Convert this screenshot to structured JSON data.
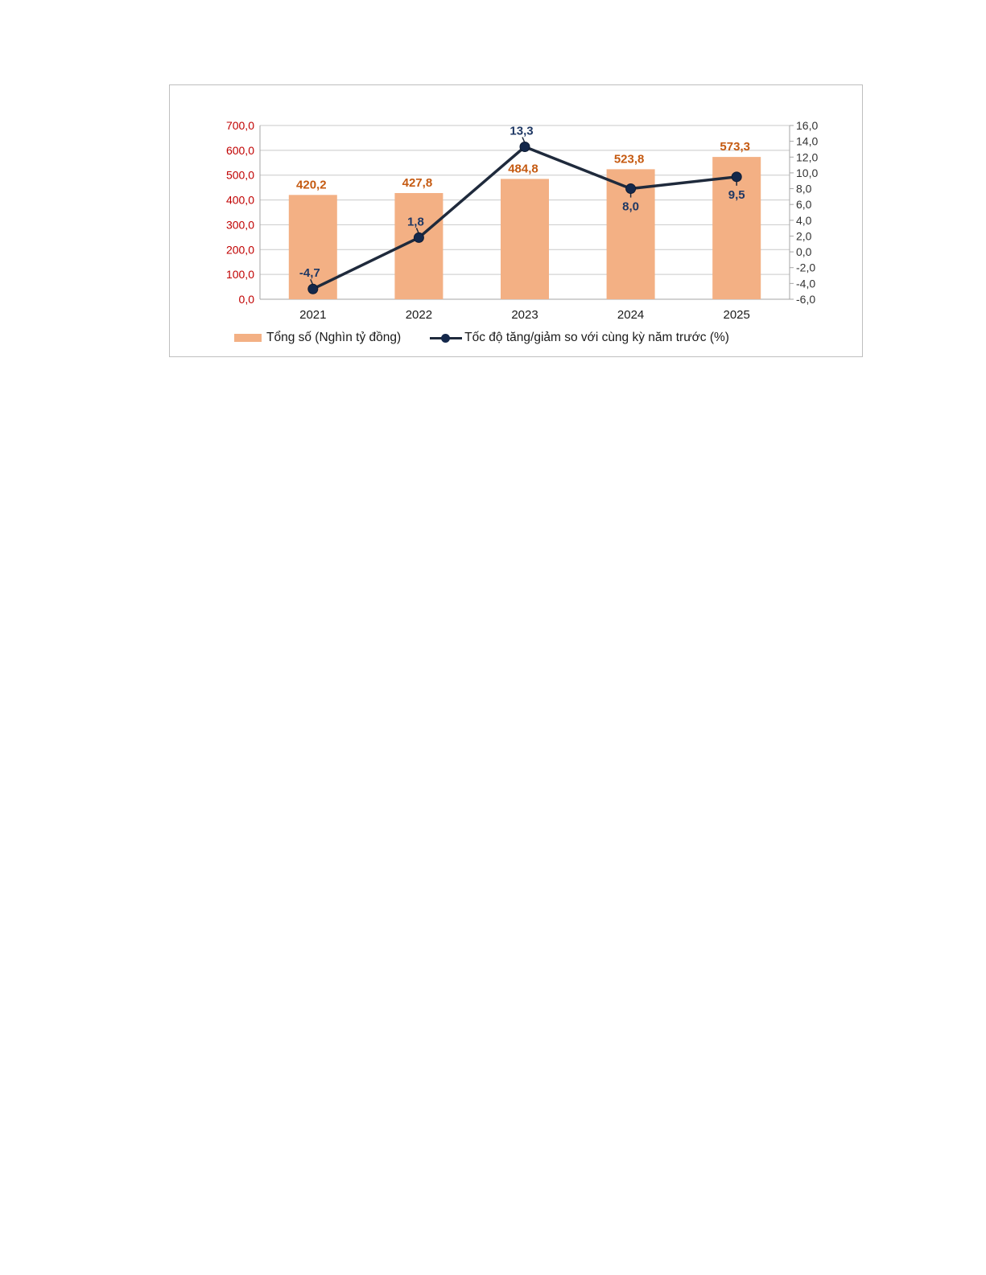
{
  "chart_data": {
    "type": "bar",
    "categories": [
      "2021",
      "2022",
      "2023",
      "2024",
      "2025"
    ],
    "series": [
      {
        "name": "Tổng số (Nghìn tỷ đồng)",
        "type": "bar",
        "axis": "left",
        "values": [
          420.2,
          427.8,
          484.8,
          523.8,
          573.3
        ],
        "labels": [
          "420,2",
          "427,8",
          "484,8",
          "523,8",
          "573,3"
        ],
        "color": "#f3b084",
        "label_color": "#c55a11"
      },
      {
        "name": "Tốc độ tăng/giảm so với cùng kỳ năm trước (%)",
        "type": "line",
        "axis": "right",
        "values": [
          -4.7,
          1.8,
          13.3,
          8.0,
          9.5
        ],
        "labels": [
          "-4,7",
          "1,8",
          "13,3",
          "8,0",
          "9,5"
        ],
        "color": "#1f2a3c",
        "marker_color": "#14284b",
        "label_color": "#1f3864"
      }
    ],
    "y_left": {
      "lim": [
        0,
        700
      ],
      "ticks": [
        "0,0",
        "100,0",
        "200,0",
        "300,0",
        "400,0",
        "500,0",
        "600,0",
        "700,0"
      ],
      "tick_color": "#c00000"
    },
    "y_right": {
      "lim": [
        -6,
        16
      ],
      "ticks": [
        "-6,0",
        "-4,0",
        "-2,0",
        "0,0",
        "2,0",
        "4,0",
        "6,0",
        "8,0",
        "10,0",
        "12,0",
        "14,0",
        "16,0"
      ],
      "tick_color": "#333333"
    },
    "grid": true,
    "legend": "bottom"
  }
}
